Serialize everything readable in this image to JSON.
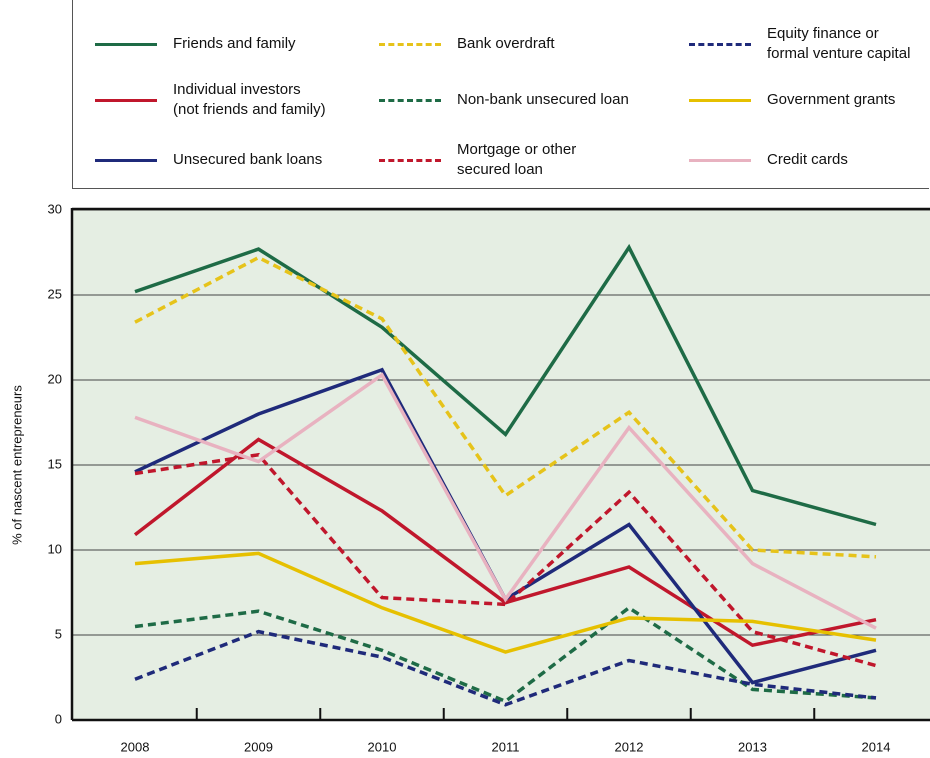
{
  "chart_data": {
    "type": "line",
    "y_label": "% of nascent entrepreneurs",
    "categories": [
      "2008",
      "2009",
      "2010",
      "2011",
      "2012",
      "2013",
      "2014"
    ],
    "ylim": [
      0,
      30
    ],
    "yticks": [
      0,
      5,
      10,
      15,
      20,
      25,
      30
    ],
    "grid": true,
    "series": [
      {
        "name": "Friends and family",
        "color": "#1e6b46",
        "dashed": false,
        "values": [
          25.2,
          27.7,
          23.1,
          16.8,
          27.8,
          13.5,
          11.5
        ]
      },
      {
        "name": "Individual investors\n(not friends and family)",
        "color": "#c0172c",
        "dashed": false,
        "values": [
          10.9,
          16.5,
          12.3,
          6.9,
          9.0,
          4.4,
          5.9
        ]
      },
      {
        "name": "Unsecured bank loans",
        "color": "#1f2a7a",
        "dashed": false,
        "values": [
          14.6,
          18.0,
          20.6,
          7.1,
          11.5,
          2.2,
          4.1
        ]
      },
      {
        "name": "Bank overdraft",
        "color": "#e6c31a",
        "dashed": true,
        "values": [
          23.4,
          27.2,
          23.6,
          13.2,
          18.1,
          10.0,
          9.6
        ]
      },
      {
        "name": "Non-bank unsecured loan",
        "color": "#1e6b46",
        "dashed": true,
        "values": [
          5.5,
          6.4,
          4.1,
          1.1,
          6.6,
          1.8,
          1.3
        ]
      },
      {
        "name": "Mortgage or other\nsecured loan",
        "color": "#c0172c",
        "dashed": true,
        "values": [
          14.5,
          15.6,
          7.2,
          6.8,
          13.4,
          5.2,
          3.2
        ]
      },
      {
        "name": "Equity finance or\nformal venture capital",
        "color": "#1f2a7a",
        "dashed": true,
        "values": [
          2.4,
          5.2,
          3.7,
          0.9,
          3.5,
          2.1,
          1.3
        ]
      },
      {
        "name": "Government grants",
        "color": "#e6c000",
        "dashed": false,
        "values": [
          9.2,
          9.8,
          6.6,
          4.0,
          6.0,
          5.8,
          4.7
        ]
      },
      {
        "name": "Credit cards",
        "color": "#e8b2c0",
        "dashed": false,
        "values": [
          17.8,
          15.2,
          20.3,
          7.1,
          17.2,
          9.2,
          5.4
        ]
      }
    ]
  }
}
